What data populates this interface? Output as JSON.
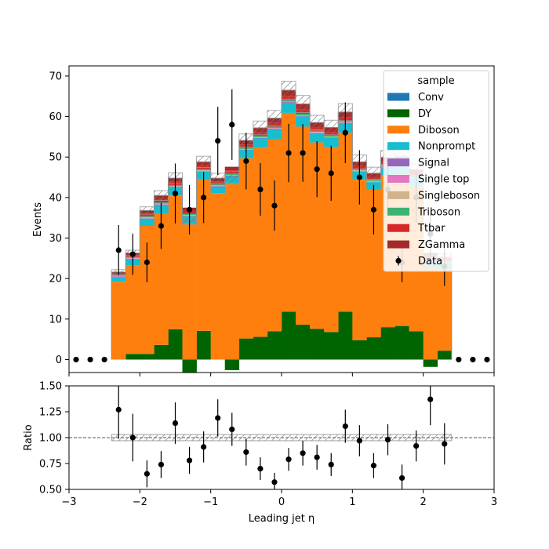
{
  "chart_data": {
    "type": "bar",
    "subtype": "stacked-histogram-with-ratio-panel",
    "title": "",
    "xlabel": "Leading jet  η",
    "ylabel": "Events",
    "ratio_ylabel": "Ratio",
    "xlim": [
      -3,
      3
    ],
    "ylim": [
      -3.2,
      72.5
    ],
    "ratio_ylim": [
      0.5,
      1.5
    ],
    "x_ticks": [
      "−3",
      "−2",
      "−1",
      "0",
      "1",
      "2",
      "3"
    ],
    "y_ticks": [
      "0",
      "10",
      "20",
      "30",
      "40",
      "50",
      "60",
      "70"
    ],
    "ratio_y_ticks": [
      "0.50",
      "0.75",
      "1.00",
      "1.25",
      "1.50"
    ],
    "legend_title": "sample",
    "legend_position": "top-right",
    "bin_edges": [
      -2.4,
      -2.2,
      -2.0,
      -1.8,
      -1.6,
      -1.4,
      -1.2,
      -1.0,
      -0.8,
      -0.6,
      -0.4,
      -0.2,
      0.0,
      0.2,
      0.4,
      0.6,
      0.8,
      1.0,
      1.2,
      1.4,
      1.6,
      1.8,
      2.0,
      2.2,
      2.4
    ],
    "series": [
      {
        "name": "Conv",
        "color": "#1f77b4",
        "values": [
          0,
          0,
          0,
          0,
          0,
          0,
          0,
          0,
          0,
          0,
          0,
          0,
          0,
          0,
          0,
          0,
          0,
          0,
          0,
          0,
          0,
          0,
          0,
          0
        ]
      },
      {
        "name": "DY",
        "color": "#006400",
        "values": [
          0,
          1.4,
          1.4,
          3.6,
          7.5,
          -3.2,
          7.1,
          0,
          -2.6,
          5.2,
          5.6,
          7.0,
          11.8,
          8.6,
          7.6,
          6.8,
          11.8,
          4.8,
          5.5,
          8.0,
          8.3,
          7.0,
          -1.8,
          2.2
        ]
      },
      {
        "name": "Diboson",
        "color": "#ff7f0e",
        "values": [
          19.2,
          21.9,
          31.6,
          32.5,
          33.0,
          33.5,
          37.3,
          41.1,
          43.3,
          44.5,
          46.7,
          47.5,
          49.1,
          48.9,
          46.0,
          45.6,
          44.2,
          39.6,
          36.4,
          37.5,
          37.4,
          35.8,
          22.9,
          20.2
        ]
      },
      {
        "name": "Nonprompt",
        "color": "#17becf",
        "values": [
          1.2,
          1.5,
          1.8,
          2.1,
          2.0,
          1.9,
          2.0,
          1.6,
          2.0,
          2.0,
          2.3,
          2.4,
          2.5,
          2.5,
          2.3,
          2.3,
          2.4,
          2.0,
          1.9,
          2.0,
          2.0,
          1.9,
          1.6,
          1.3
        ]
      },
      {
        "name": "Signal",
        "color": "#9467bd",
        "values": [
          0.1,
          0.1,
          0.1,
          0.1,
          0.1,
          0.1,
          0.1,
          0.1,
          0.1,
          0.1,
          0.1,
          0.1,
          0.1,
          0.1,
          0.1,
          0.1,
          0.1,
          0.1,
          0.1,
          0.1,
          0.1,
          0.1,
          0.1,
          0.1
        ]
      },
      {
        "name": "Single top",
        "color": "#e377c2",
        "values": [
          0.1,
          0.1,
          0.1,
          0.1,
          0.1,
          0.1,
          0.1,
          0.1,
          0.1,
          0.1,
          0.1,
          0.1,
          0.1,
          0.1,
          0.1,
          0.1,
          0.1,
          0.1,
          0.1,
          0.1,
          0.1,
          0.1,
          0.1,
          0.1
        ]
      },
      {
        "name": "Singleboson",
        "color": "#d2b48c",
        "values": [
          0.1,
          0.1,
          0.1,
          0.1,
          0.1,
          0.1,
          0.1,
          0.1,
          0.1,
          0.1,
          0.1,
          0.1,
          0.1,
          0.1,
          0.1,
          0.1,
          0.1,
          0.1,
          0.1,
          0.1,
          0.1,
          0.1,
          0.1,
          0.1
        ]
      },
      {
        "name": "Triboson",
        "color": "#3cb371",
        "values": [
          0.2,
          0.2,
          0.3,
          0.3,
          0.3,
          0.3,
          0.3,
          0.3,
          0.3,
          0.3,
          0.3,
          0.3,
          0.4,
          0.4,
          0.3,
          0.3,
          0.3,
          0.3,
          0.3,
          0.3,
          0.3,
          0.3,
          0.2,
          0.2
        ]
      },
      {
        "name": "Ttbar",
        "color": "#d62728",
        "values": [
          0.4,
          0.5,
          0.7,
          0.8,
          0.8,
          0.7,
          0.8,
          0.7,
          0.8,
          0.8,
          0.9,
          0.9,
          1.0,
          1.0,
          0.9,
          0.9,
          0.9,
          0.8,
          0.7,
          0.8,
          0.8,
          0.7,
          0.6,
          0.5
        ]
      },
      {
        "name": "ZGamma",
        "color": "#a52a2a",
        "values": [
          0.3,
          0.5,
          0.7,
          0.9,
          0.9,
          0.8,
          1.0,
          0.8,
          0.9,
          1.0,
          1.1,
          1.2,
          1.4,
          1.4,
          1.1,
          1.1,
          1.2,
          1.0,
          0.9,
          1.0,
          1.0,
          0.9,
          0.7,
          0.5
        ]
      }
    ],
    "mc_uncertainty": [
      0.6,
      0.7,
      0.9,
      1.2,
      1.3,
      1.1,
      1.4,
      1.2,
      1.4,
      1.6,
      1.7,
      1.9,
      2.2,
      2.1,
      1.8,
      1.8,
      2.1,
      1.7,
      1.5,
      1.7,
      1.7,
      1.5,
      1.1,
      0.9
    ],
    "data": {
      "name": "Data",
      "color": "#000000",
      "x": [
        -2.9,
        -2.7,
        -2.5,
        -2.3,
        -2.1,
        -1.9,
        -1.7,
        -1.5,
        -1.3,
        -1.1,
        -0.9,
        -0.7,
        -0.5,
        -0.3,
        -0.1,
        0.1,
        0.3,
        0.5,
        0.7,
        0.9,
        1.1,
        1.3,
        1.5,
        1.7,
        1.9,
        2.1,
        2.3,
        2.5,
        2.7,
        2.9
      ],
      "y": [
        0,
        0,
        0,
        27,
        26,
        24,
        33,
        41,
        37,
        40,
        54,
        58,
        49,
        42,
        38,
        51,
        51,
        47,
        46,
        56,
        45,
        37,
        42,
        24,
        40,
        31,
        23,
        0,
        0,
        0
      ],
      "yerr": [
        0,
        0,
        0,
        6.2,
        5.1,
        4.9,
        5.7,
        7.4,
        6.1,
        6.3,
        8.4,
        8.7,
        7.0,
        6.5,
        6.2,
        7.2,
        7.1,
        6.9,
        6.8,
        7.5,
        6.7,
        6.1,
        6.5,
        4.9,
        6.3,
        5.6,
        4.8,
        0,
        0,
        0
      ]
    },
    "ratio": {
      "x": [
        -2.3,
        -2.1,
        -1.9,
        -1.7,
        -1.5,
        -1.3,
        -1.1,
        -0.9,
        -0.7,
        -0.5,
        -0.3,
        -0.1,
        0.1,
        0.3,
        0.5,
        0.7,
        0.9,
        1.1,
        1.3,
        1.5,
        1.7,
        1.9,
        2.1,
        2.3
      ],
      "y": [
        1.27,
        1.0,
        0.65,
        0.74,
        1.14,
        0.78,
        0.91,
        1.19,
        1.08,
        0.86,
        0.7,
        0.57,
        0.79,
        0.85,
        0.81,
        0.74,
        1.11,
        0.97,
        0.73,
        0.98,
        0.61,
        0.92,
        1.37,
        0.94
      ],
      "yerr": [
        0.28,
        0.23,
        0.13,
        0.13,
        0.2,
        0.13,
        0.15,
        0.18,
        0.16,
        0.13,
        0.11,
        0.09,
        0.11,
        0.12,
        0.12,
        0.11,
        0.16,
        0.15,
        0.12,
        0.15,
        0.13,
        0.15,
        0.25,
        0.2
      ]
    },
    "ratio_band": 0.03
  }
}
